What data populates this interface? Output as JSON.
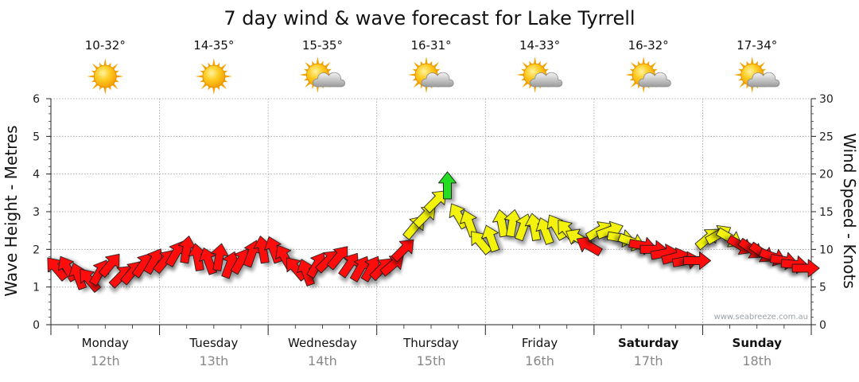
{
  "chart_data": {
    "type": "line",
    "title": "7 day wind & wave forecast for Lake Tyrrell",
    "ylabel_left": "Wave Height - Metres",
    "ylabel_right": "Wind Speed - Knots",
    "ylim_left": [
      0,
      6
    ],
    "ylim_right": [
      0,
      30
    ],
    "yticks_left": [
      "0",
      "1",
      "2",
      "3",
      "4",
      "5",
      "6"
    ],
    "yticks_right": [
      "0",
      "5",
      "10",
      "15",
      "20",
      "25",
      "30"
    ],
    "watermark": "www.seabreeze.com.au",
    "days": [
      {
        "name": "Monday",
        "date": "12th",
        "temp": "10-32°",
        "icon": "sun-icon",
        "bold": false
      },
      {
        "name": "Tuesday",
        "date": "13th",
        "temp": "14-35°",
        "icon": "sun-icon",
        "bold": false
      },
      {
        "name": "Wednesday",
        "date": "14th",
        "temp": "15-35°",
        "icon": "sun-cloud-icon",
        "bold": false
      },
      {
        "name": "Thursday",
        "date": "15th",
        "temp": "16-31°",
        "icon": "sun-cloud-icon",
        "bold": false
      },
      {
        "name": "Friday",
        "date": "16th",
        "temp": "14-33°",
        "icon": "sun-cloud-icon",
        "bold": false
      },
      {
        "name": "Saturday",
        "date": "17th",
        "temp": "16-32°",
        "icon": "sun-cloud-icon",
        "bold": true
      },
      {
        "name": "Sunday",
        "date": "18th",
        "temp": "17-34°",
        "icon": "sun-cloud-icon",
        "bold": true
      }
    ],
    "wind_series": {
      "name": "Wind speed (knots) with direction arrows",
      "x_days": [
        0.05,
        0.15,
        0.25,
        0.35,
        0.45,
        0.55,
        0.65,
        0.75,
        0.85,
        0.95,
        1.05,
        1.15,
        1.25,
        1.35,
        1.45,
        1.55,
        1.65,
        1.75,
        1.85,
        1.95,
        2.05,
        2.15,
        2.25,
        2.35,
        2.45,
        2.55,
        2.65,
        2.75,
        2.85,
        2.95,
        3.05,
        3.15,
        3.25,
        3.35,
        3.45,
        3.55,
        3.65,
        3.75,
        3.85,
        3.95,
        4.05,
        4.15,
        4.25,
        4.35,
        4.45,
        4.55,
        4.65,
        4.75,
        4.85,
        4.95,
        5.05,
        5.15,
        5.25,
        5.35,
        5.45,
        5.55,
        5.65,
        5.75,
        5.85,
        5.95,
        6.05,
        6.15,
        6.25,
        6.35,
        6.45,
        6.55,
        6.65,
        6.75,
        6.85,
        6.95
      ],
      "knots": [
        7.5,
        7.5,
        6.5,
        6,
        7,
        8,
        6.5,
        7,
        8,
        8.5,
        8.5,
        9.5,
        10,
        9,
        8.5,
        9,
        8,
        8.5,
        9.5,
        10,
        10,
        9,
        7.5,
        7,
        8,
        8.5,
        9,
        8,
        7.5,
        7.5,
        7.5,
        8,
        10,
        13,
        14.5,
        16.5,
        18.5,
        14.5,
        13.5,
        11,
        11.5,
        13.5,
        13.5,
        13,
        13,
        12.5,
        13,
        12.5,
        11.5,
        10.5,
        12.5,
        12.5,
        11.5,
        11,
        10.5,
        10,
        9.5,
        9,
        8.5,
        8.5,
        11.5,
        12,
        11.5,
        10.5,
        10,
        9.5,
        9,
        8.5,
        8,
        7.5
      ],
      "direction_deg": [
        320,
        330,
        340,
        320,
        30,
        40,
        45,
        40,
        35,
        30,
        40,
        30,
        10,
        350,
        340,
        10,
        20,
        30,
        20,
        350,
        340,
        330,
        320,
        340,
        30,
        45,
        40,
        35,
        30,
        30,
        45,
        50,
        45,
        40,
        45,
        45,
        0,
        330,
        340,
        320,
        340,
        350,
        10,
        20,
        350,
        340,
        330,
        320,
        300,
        300,
        60,
        70,
        100,
        110,
        100,
        90,
        80,
        75,
        80,
        90,
        50,
        60,
        120,
        120,
        125,
        125,
        110,
        100,
        95,
        90
      ]
    }
  }
}
